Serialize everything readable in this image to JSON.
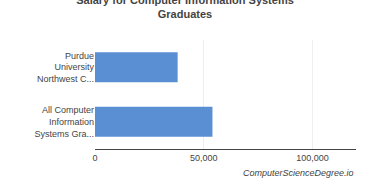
{
  "chart_data": {
    "type": "bar",
    "orientation": "horizontal",
    "title": "Salary for Computer Information Systems\nGraduates",
    "categories": [
      "All Computer\nInformation\nSystems Gra...",
      "Purdue\nUniversity\nNorthwest C..."
    ],
    "values": [
      54000,
      38000
    ],
    "color": "#5b8fd4",
    "xlim": [
      0,
      120000
    ],
    "xticks": [
      0,
      {
        "value": 50000,
        "label": "50,000"
      },
      {
        "value": 100000,
        "label": "100,000"
      }
    ],
    "grid": true,
    "annotations": [
      "ComputerScienceDegree.io"
    ]
  }
}
